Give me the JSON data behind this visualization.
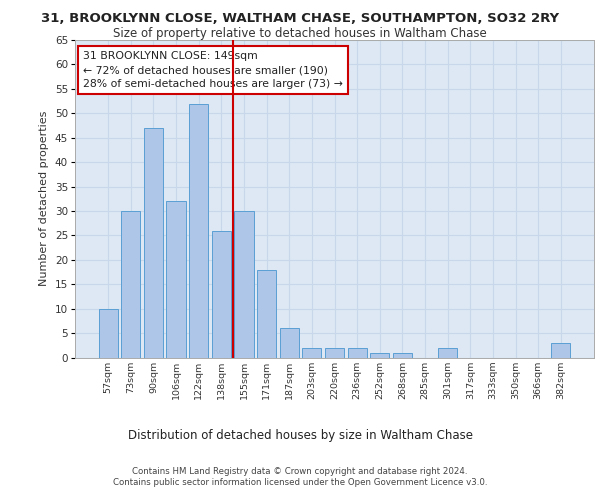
{
  "title": "31, BROOKLYNN CLOSE, WALTHAM CHASE, SOUTHAMPTON, SO32 2RY",
  "subtitle": "Size of property relative to detached houses in Waltham Chase",
  "xlabel": "Distribution of detached houses by size in Waltham Chase",
  "ylabel": "Number of detached properties",
  "bar_labels": [
    "57sqm",
    "73sqm",
    "90sqm",
    "106sqm",
    "122sqm",
    "138sqm",
    "155sqm",
    "171sqm",
    "187sqm",
    "203sqm",
    "220sqm",
    "236sqm",
    "252sqm",
    "268sqm",
    "285sqm",
    "301sqm",
    "317sqm",
    "333sqm",
    "350sqm",
    "366sqm",
    "382sqm"
  ],
  "bar_values": [
    10,
    30,
    47,
    32,
    52,
    26,
    30,
    18,
    6,
    2,
    2,
    2,
    1,
    1,
    0,
    2,
    0,
    0,
    0,
    0,
    3
  ],
  "bar_color": "#aec6e8",
  "bar_edge_color": "#5a9fd4",
  "grid_color": "#c8d8ea",
  "background_color": "#dde8f4",
  "vline_x": 5.5,
  "vline_color": "#cc0000",
  "annotation_text": "31 BROOKLYNN CLOSE: 149sqm\n← 72% of detached houses are smaller (190)\n28% of semi-detached houses are larger (73) →",
  "annotation_box_color": "#ffffff",
  "annotation_box_edge": "#cc0000",
  "ylim": [
    0,
    65
  ],
  "yticks": [
    0,
    5,
    10,
    15,
    20,
    25,
    30,
    35,
    40,
    45,
    50,
    55,
    60,
    65
  ],
  "footer_line1": "Contains HM Land Registry data © Crown copyright and database right 2024.",
  "footer_line2": "Contains public sector information licensed under the Open Government Licence v3.0."
}
